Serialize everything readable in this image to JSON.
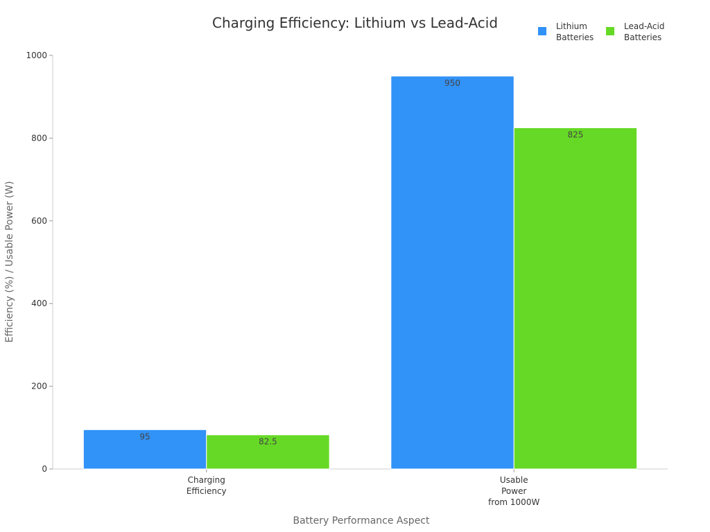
{
  "chart_data": {
    "type": "bar",
    "title": "Charging Efficiency: Lithium vs Lead-Acid",
    "xlabel": "Battery Performance Aspect",
    "ylabel": "Efficiency (%) / Usable Power (W)",
    "categories": [
      [
        "Charging",
        "Efficiency"
      ],
      [
        "Usable",
        "Power",
        "from 1000W"
      ]
    ],
    "series": [
      {
        "name": [
          "Lithium",
          "Batteries"
        ],
        "color": "#3192f7",
        "values": [
          95,
          950
        ],
        "labels": [
          "95",
          "950"
        ]
      },
      {
        "name": [
          "Lead-Acid",
          "Batteries"
        ],
        "color": "#66d926",
        "values": [
          82.5,
          825
        ],
        "labels": [
          "82.5",
          "825"
        ]
      }
    ],
    "ylim": [
      0,
      1000
    ],
    "yticks": [
      0,
      200,
      400,
      600,
      800,
      1000
    ],
    "ytick_labels": [
      "0",
      "200",
      "400",
      "600",
      "800",
      "1000"
    ],
    "grid": false,
    "legend_position": "top-right"
  }
}
